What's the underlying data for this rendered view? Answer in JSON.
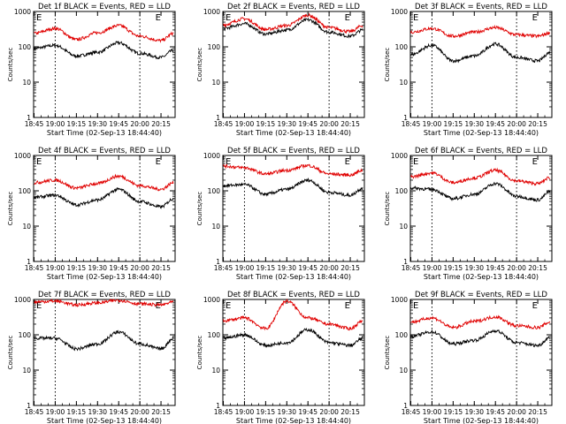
{
  "chart_data": [
    {
      "type": "line",
      "title": "Det 1f BLACK = Events, RED = LLD",
      "marker": "E",
      "ylabel": "Counts/sec",
      "xlabel": "Start Time (02-Sep-13 18:44:40)",
      "yscale": "log",
      "ylim": [
        1,
        1000
      ],
      "yticks": [
        "1",
        "10",
        "100",
        "1000"
      ],
      "xticks": [
        "18:45",
        "19:00",
        "19:15",
        "19:30",
        "19:45",
        "20:00",
        "20:15"
      ],
      "xlim": [
        "18:44:40",
        "20:25"
      ],
      "vlines": [
        "19:00",
        "20:00"
      ],
      "series": [
        {
          "color": "#000000",
          "x": [
            "18:45",
            "19:00",
            "19:15",
            "19:30",
            "19:45",
            "20:00",
            "20:15",
            "20:24"
          ],
          "y": [
            90,
            110,
            55,
            70,
            130,
            65,
            50,
            80
          ]
        },
        {
          "color": "#e00000",
          "x": [
            "18:45",
            "19:00",
            "19:15",
            "19:30",
            "19:45",
            "20:00",
            "20:15",
            "20:24"
          ],
          "y": [
            240,
            330,
            160,
            250,
            400,
            200,
            150,
            240
          ]
        }
      ]
    },
    {
      "type": "line",
      "title": "Det 2f BLACK = Events, RED = LLD",
      "marker": "E",
      "ylabel": "Counts/sec",
      "xlabel": "Start Time (02-Sep-13 18:44:40)",
      "yscale": "log",
      "ylim": [
        1,
        1000
      ],
      "yticks": [
        "1",
        "10",
        "100",
        "1000"
      ],
      "xticks": [
        "18:45",
        "19:00",
        "19:15",
        "19:30",
        "19:45",
        "20:00",
        "20:15"
      ],
      "xlim": [
        "18:44:40",
        "20:25"
      ],
      "vlines": [
        "20:00"
      ],
      "series": [
        {
          "color": "#000000",
          "x": [
            "18:45",
            "19:00",
            "19:15",
            "19:30",
            "19:45",
            "20:00",
            "20:15",
            "20:24"
          ],
          "y": [
            330,
            450,
            230,
            300,
            580,
            260,
            200,
            300
          ]
        },
        {
          "color": "#e00000",
          "x": [
            "18:45",
            "19:00",
            "19:15",
            "19:30",
            "19:45",
            "20:00",
            "20:15",
            "20:24"
          ],
          "y": [
            420,
            620,
            310,
            400,
            780,
            350,
            270,
            400
          ]
        }
      ]
    },
    {
      "type": "line",
      "title": "Det 3f BLACK = Events, RED = LLD",
      "marker": "E",
      "ylabel": "Counts/sec",
      "xlabel": "Start Time (02-Sep-13 18:44:40)",
      "yscale": "log",
      "ylim": [
        1,
        1000
      ],
      "yticks": [
        "1",
        "10",
        "100",
        "1000"
      ],
      "xticks": [
        "18:45",
        "19:00",
        "19:15",
        "19:30",
        "19:45",
        "20:00",
        "20:15"
      ],
      "xlim": [
        "18:44:40",
        "20:25"
      ],
      "vlines": [
        "19:00",
        "20:00"
      ],
      "series": [
        {
          "color": "#000000",
          "x": [
            "18:45",
            "19:00",
            "19:15",
            "19:30",
            "19:45",
            "20:00",
            "20:15",
            "20:24"
          ],
          "y": [
            60,
            110,
            40,
            55,
            120,
            50,
            40,
            70
          ]
        },
        {
          "color": "#e00000",
          "x": [
            "18:45",
            "19:00",
            "19:15",
            "19:30",
            "19:45",
            "20:00",
            "20:15",
            "20:24"
          ],
          "y": [
            260,
            330,
            200,
            260,
            350,
            220,
            200,
            250
          ]
        }
      ]
    },
    {
      "type": "line",
      "title": "Det 4f BLACK = Events, RED = LLD",
      "marker": "E",
      "ylabel": "Counts/sec",
      "xlabel": "Start Time (02-Sep-13 18:44:40)",
      "yscale": "log",
      "ylim": [
        1,
        1000
      ],
      "yticks": [
        "1",
        "10",
        "100",
        "1000"
      ],
      "xticks": [
        "18:45",
        "19:00",
        "19:15",
        "19:30",
        "19:45",
        "20:00",
        "20:15"
      ],
      "xlim": [
        "18:44:40",
        "20:25"
      ],
      "vlines": [
        "19:00",
        "20:00"
      ],
      "series": [
        {
          "color": "#000000",
          "x": [
            "18:45",
            "19:00",
            "19:15",
            "19:30",
            "19:45",
            "20:00",
            "20:15",
            "20:24"
          ],
          "y": [
            65,
            75,
            40,
            55,
            110,
            50,
            35,
            60
          ]
        },
        {
          "color": "#e00000",
          "x": [
            "18:45",
            "19:00",
            "19:15",
            "19:30",
            "19:45",
            "20:00",
            "20:15",
            "20:24"
          ],
          "y": [
            170,
            200,
            120,
            160,
            260,
            140,
            110,
            170
          ]
        }
      ]
    },
    {
      "type": "line",
      "title": "Det 5f BLACK = Events, RED = LLD",
      "marker": "E",
      "ylabel": "Counts/sec",
      "xlabel": "Start Time (02-Sep-13 18:44:40)",
      "yscale": "log",
      "ylim": [
        1,
        1000
      ],
      "yticks": [
        "1",
        "10",
        "100",
        "1000"
      ],
      "xticks": [
        "18:45",
        "19:00",
        "19:15",
        "19:30",
        "19:45",
        "20:00",
        "20:15"
      ],
      "xlim": [
        "18:44:40",
        "20:25"
      ],
      "vlines": [
        "19:00",
        "20:00"
      ],
      "series": [
        {
          "color": "#000000",
          "x": [
            "18:45",
            "19:00",
            "19:15",
            "19:30",
            "19:45",
            "20:00",
            "20:15",
            "20:24"
          ],
          "y": [
            140,
            150,
            80,
            110,
            200,
            90,
            75,
            120
          ]
        },
        {
          "color": "#e00000",
          "x": [
            "18:45",
            "19:00",
            "19:15",
            "19:30",
            "19:45",
            "20:00",
            "20:15",
            "20:24"
          ],
          "y": [
            500,
            450,
            300,
            380,
            520,
            300,
            280,
            380
          ]
        }
      ]
    },
    {
      "type": "line",
      "title": "Det 6f BLACK = Events, RED = LLD",
      "marker": "E",
      "ylabel": "Counts/sec",
      "xlabel": "Start Time (02-Sep-13 18:44:40)",
      "yscale": "log",
      "ylim": [
        1,
        1000
      ],
      "yticks": [
        "1",
        "10",
        "100",
        "1000"
      ],
      "xticks": [
        "18:45",
        "19:00",
        "19:15",
        "19:30",
        "19:45",
        "20:00",
        "20:15"
      ],
      "xlim": [
        "18:44:40",
        "20:25"
      ],
      "vlines": [
        "19:00",
        "20:00"
      ],
      "series": [
        {
          "color": "#000000",
          "x": [
            "18:45",
            "19:00",
            "19:15",
            "19:30",
            "19:45",
            "20:00",
            "20:15",
            "20:24"
          ],
          "y": [
            120,
            110,
            60,
            80,
            160,
            70,
            55,
            95
          ]
        },
        {
          "color": "#e00000",
          "x": [
            "18:45",
            "19:00",
            "19:15",
            "19:30",
            "19:45",
            "20:00",
            "20:15",
            "20:24"
          ],
          "y": [
            250,
            320,
            170,
            230,
            380,
            190,
            160,
            240
          ]
        }
      ]
    },
    {
      "type": "line",
      "title": "Det 7f BLACK = Events, RED = LLD",
      "marker": "E",
      "ylabel": "Counts/sec",
      "xlabel": "Start Time (02-Sep-13 18:44:40)",
      "yscale": "log",
      "ylim": [
        1,
        1000
      ],
      "yticks": [
        "1",
        "10",
        "100",
        "1000"
      ],
      "xticks": [
        "18:45",
        "19:00",
        "19:15",
        "19:30",
        "19:45",
        "20:00",
        "20:15"
      ],
      "xlim": [
        "18:44:40",
        "20:25"
      ],
      "vlines": [
        "19:00",
        "20:00"
      ],
      "series": [
        {
          "color": "#000000",
          "x": [
            "18:45",
            "19:00",
            "19:15",
            "19:30",
            "19:45",
            "20:00",
            "20:15",
            "20:24"
          ],
          "y": [
            80,
            80,
            40,
            55,
            120,
            55,
            40,
            80
          ]
        },
        {
          "color": "#e00000",
          "x": [
            "18:45",
            "19:00",
            "19:15",
            "19:30",
            "19:45",
            "20:00",
            "20:15",
            "20:24"
          ],
          "y": [
            850,
            900,
            700,
            800,
            950,
            750,
            700,
            850
          ]
        }
      ]
    },
    {
      "type": "line",
      "title": "Det 8f BLACK = Events, RED = LLD",
      "marker": "E",
      "ylabel": "Counts/sec",
      "xlabel": "Start Time (02-Sep-13 18:44:40)",
      "yscale": "log",
      "ylim": [
        1,
        1000
      ],
      "yticks": [
        "1",
        "10",
        "100",
        "1000"
      ],
      "xticks": [
        "18:45",
        "19:00",
        "19:15",
        "19:30",
        "19:45",
        "20:00",
        "20:15"
      ],
      "xlim": [
        "18:44:40",
        "20:25"
      ],
      "vlines": [
        "19:00",
        "20:00"
      ],
      "series": [
        {
          "color": "#000000",
          "x": [
            "18:45",
            "19:00",
            "19:15",
            "19:30",
            "19:45",
            "20:00",
            "20:15",
            "20:24"
          ],
          "y": [
            80,
            100,
            50,
            60,
            140,
            60,
            50,
            80
          ]
        },
        {
          "color": "#e00000",
          "x": [
            "18:45",
            "19:00",
            "19:15",
            "19:30",
            "19:45",
            "20:00",
            "20:15",
            "20:24"
          ],
          "y": [
            250,
            300,
            150,
            900,
            300,
            200,
            150,
            250
          ]
        }
      ]
    },
    {
      "type": "line",
      "title": "Det 9f BLACK = Events, RED = LLD",
      "marker": "E",
      "ylabel": "Counts/sec",
      "xlabel": "Start Time (02-Sep-13 18:44:40)",
      "yscale": "log",
      "ylim": [
        1,
        1000
      ],
      "yticks": [
        "1",
        "10",
        "100",
        "1000"
      ],
      "xticks": [
        "18:45",
        "19:00",
        "19:15",
        "19:30",
        "19:45",
        "20:00",
        "20:15"
      ],
      "xlim": [
        "18:44:40",
        "20:25"
      ],
      "vlines": [
        "19:00",
        "20:00"
      ],
      "series": [
        {
          "color": "#000000",
          "x": [
            "18:45",
            "19:00",
            "19:15",
            "19:30",
            "19:45",
            "20:00",
            "20:15",
            "20:24"
          ],
          "y": [
            90,
            120,
            55,
            70,
            130,
            60,
            50,
            85
          ]
        },
        {
          "color": "#e00000",
          "x": [
            "18:45",
            "19:00",
            "19:15",
            "19:30",
            "19:45",
            "20:00",
            "20:15",
            "20:24"
          ],
          "y": [
            230,
            300,
            160,
            240,
            320,
            180,
            160,
            230
          ]
        }
      ]
    }
  ]
}
